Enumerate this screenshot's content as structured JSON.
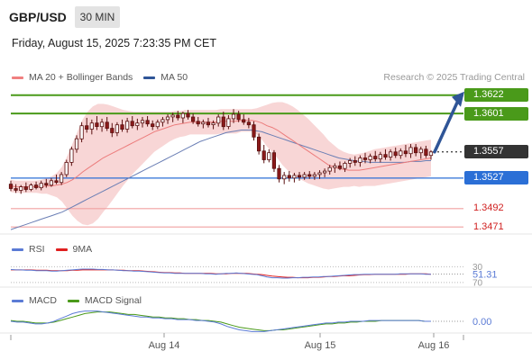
{
  "header": {
    "symbol": "GBP/USD",
    "timeframe": "30 MIN",
    "datetime": "Friday, August 15, 2025 7:23:35 PM CET"
  },
  "legends": {
    "price": [
      {
        "label": "MA 20 + Bollinger Bands",
        "color": "#f08080"
      },
      {
        "label": "MA 50",
        "color": "#2f5597"
      }
    ],
    "rsi": [
      {
        "label": "RSI",
        "color": "#5b7bd5"
      },
      {
        "label": "9MA",
        "color": "#e02020"
      }
    ],
    "macd": [
      {
        "label": "MACD",
        "color": "#5b7bd5"
      },
      {
        "label": "MACD Signal",
        "color": "#4a9a1a"
      }
    ]
  },
  "credit": "Research © 2025 Trading Central",
  "levels": [
    {
      "value": 1.3622,
      "label": "1.3622",
      "style": "green-box"
    },
    {
      "value": 1.3601,
      "label": "1.3601",
      "style": "green-box"
    },
    {
      "value": 1.3557,
      "label": "1.3557",
      "style": "dark-box"
    },
    {
      "value": 1.3527,
      "label": "1.3527",
      "style": "blue-box"
    },
    {
      "value": 1.3492,
      "label": "1.3492",
      "style": "red-text"
    },
    {
      "value": 1.3471,
      "label": "1.3471",
      "style": "red-text"
    }
  ],
  "colors": {
    "green": "#4a9a1a",
    "dark": "#333333",
    "blue": "#2b6fd6",
    "red": "#d02020",
    "band_fill": "#f6c8c8",
    "candle_up": "#ffffff",
    "candle_down": "#8b1a1a",
    "arrow": "#2f5597"
  },
  "chart_data": {
    "type": "candlestick",
    "ylim": [
      1.3465,
      1.3632
    ],
    "x_ticks": [
      "Aug 14",
      "Aug 15",
      "Aug 16"
    ],
    "last_price": 1.3557,
    "forecast_target": 1.3622,
    "candles": [
      [
        1.352,
        1.3524,
        1.3512,
        1.3515
      ],
      [
        1.3515,
        1.352,
        1.351,
        1.3513
      ],
      [
        1.3513,
        1.3519,
        1.3509,
        1.3517
      ],
      [
        1.3517,
        1.3522,
        1.3511,
        1.3514
      ],
      [
        1.3514,
        1.3521,
        1.3512,
        1.3519
      ],
      [
        1.3519,
        1.3523,
        1.3514,
        1.3516
      ],
      [
        1.3516,
        1.3524,
        1.3513,
        1.3521
      ],
      [
        1.3521,
        1.3526,
        1.3516,
        1.3519
      ],
      [
        1.3519,
        1.3527,
        1.3517,
        1.3524
      ],
      [
        1.3524,
        1.3531,
        1.352,
        1.3522
      ],
      [
        1.3522,
        1.3534,
        1.3519,
        1.3531
      ],
      [
        1.3531,
        1.3548,
        1.3528,
        1.3545
      ],
      [
        1.3545,
        1.3563,
        1.3541,
        1.356
      ],
      [
        1.356,
        1.3576,
        1.3556,
        1.3572
      ],
      [
        1.3572,
        1.3591,
        1.3568,
        1.3587
      ],
      [
        1.3587,
        1.3596,
        1.3579,
        1.3583
      ],
      [
        1.3583,
        1.3594,
        1.3577,
        1.359
      ],
      [
        1.359,
        1.3598,
        1.3582,
        1.3586
      ],
      [
        1.3586,
        1.3595,
        1.358,
        1.3591
      ],
      [
        1.3591,
        1.3597,
        1.3581,
        1.3584
      ],
      [
        1.3584,
        1.359,
        1.3574,
        1.3579
      ],
      [
        1.3579,
        1.3591,
        1.3575,
        1.3588
      ],
      [
        1.3588,
        1.3594,
        1.358,
        1.3583
      ],
      [
        1.3583,
        1.3596,
        1.3579,
        1.3592
      ],
      [
        1.3592,
        1.3598,
        1.3584,
        1.3587
      ],
      [
        1.3587,
        1.3595,
        1.3582,
        1.359
      ],
      [
        1.359,
        1.3597,
        1.3585,
        1.3593
      ],
      [
        1.3593,
        1.3598,
        1.3586,
        1.3589
      ],
      [
        1.3589,
        1.3593,
        1.3582,
        1.3586
      ],
      [
        1.3586,
        1.3594,
        1.3583,
        1.3591
      ],
      [
        1.3591,
        1.3597,
        1.3586,
        1.3594
      ],
      [
        1.3594,
        1.36,
        1.3589,
        1.3597
      ],
      [
        1.3597,
        1.3602,
        1.3591,
        1.3599
      ],
      [
        1.3599,
        1.3604,
        1.3593,
        1.3596
      ],
      [
        1.3596,
        1.3603,
        1.359,
        1.3601
      ],
      [
        1.3601,
        1.3605,
        1.3594,
        1.3597
      ],
      [
        1.3597,
        1.3601,
        1.3589,
        1.3592
      ],
      [
        1.3592,
        1.3597,
        1.3586,
        1.3589
      ],
      [
        1.3589,
        1.3594,
        1.3584,
        1.3591
      ],
      [
        1.3591,
        1.3596,
        1.3585,
        1.3588
      ],
      [
        1.3588,
        1.3593,
        1.3583,
        1.359
      ],
      [
        1.359,
        1.36,
        1.3586,
        1.3597
      ],
      [
        1.3597,
        1.3603,
        1.3582,
        1.3586
      ],
      [
        1.3586,
        1.3599,
        1.3583,
        1.3595
      ],
      [
        1.3595,
        1.3606,
        1.359,
        1.36
      ],
      [
        1.36,
        1.3604,
        1.3591,
        1.3594
      ],
      [
        1.3594,
        1.36,
        1.3588,
        1.3591
      ],
      [
        1.3591,
        1.3596,
        1.3584,
        1.3588
      ],
      [
        1.3588,
        1.3592,
        1.357,
        1.3574
      ],
      [
        1.3574,
        1.3578,
        1.3554,
        1.3558
      ],
      [
        1.3558,
        1.3565,
        1.3544,
        1.3548
      ],
      [
        1.3548,
        1.356,
        1.3545,
        1.3556
      ],
      [
        1.3556,
        1.3559,
        1.3534,
        1.3538
      ],
      [
        1.3538,
        1.3542,
        1.3522,
        1.3526
      ],
      [
        1.3526,
        1.3534,
        1.352,
        1.353
      ],
      [
        1.353,
        1.3535,
        1.3523,
        1.3527
      ],
      [
        1.3527,
        1.3533,
        1.3522,
        1.353
      ],
      [
        1.353,
        1.3534,
        1.3524,
        1.3528
      ],
      [
        1.3528,
        1.3534,
        1.3525,
        1.3531
      ],
      [
        1.3531,
        1.3535,
        1.3526,
        1.3529
      ],
      [
        1.3529,
        1.3534,
        1.3525,
        1.3531
      ],
      [
        1.3531,
        1.3536,
        1.3526,
        1.3533
      ],
      [
        1.3533,
        1.3538,
        1.3528,
        1.3535
      ],
      [
        1.3535,
        1.3542,
        1.3531,
        1.3539
      ],
      [
        1.3539,
        1.3544,
        1.3533,
        1.3541
      ],
      [
        1.3541,
        1.3546,
        1.3536,
        1.3538
      ],
      [
        1.3538,
        1.3546,
        1.3534,
        1.3544
      ],
      [
        1.3544,
        1.355,
        1.3539,
        1.3547
      ],
      [
        1.3547,
        1.3552,
        1.3541,
        1.3545
      ],
      [
        1.3545,
        1.3553,
        1.354,
        1.355
      ],
      [
        1.355,
        1.3556,
        1.3544,
        1.3548
      ],
      [
        1.3548,
        1.3555,
        1.3544,
        1.3552
      ],
      [
        1.3552,
        1.3558,
        1.3546,
        1.3549
      ],
      [
        1.3549,
        1.3557,
        1.3545,
        1.3554
      ],
      [
        1.3554,
        1.356,
        1.3548,
        1.3551
      ],
      [
        1.3551,
        1.356,
        1.3547,
        1.3557
      ],
      [
        1.3557,
        1.3562,
        1.355,
        1.3553
      ],
      [
        1.3553,
        1.3561,
        1.3549,
        1.3558
      ],
      [
        1.3558,
        1.3565,
        1.3551,
        1.3555
      ],
      [
        1.3555,
        1.3566,
        1.355,
        1.3562
      ],
      [
        1.3562,
        1.3566,
        1.3552,
        1.3556
      ],
      [
        1.3556,
        1.3563,
        1.3549,
        1.356
      ],
      [
        1.356,
        1.3564,
        1.355,
        1.3553
      ],
      [
        1.3553,
        1.3559,
        1.3548,
        1.3557
      ]
    ],
    "ma20": [
      1.3518,
      1.3517,
      1.3517,
      1.3517,
      1.3517,
      1.3517,
      1.3517,
      1.3518,
      1.3518,
      1.3519,
      1.352,
      1.3522,
      1.3525,
      1.3529,
      1.3534,
      1.3538,
      1.3542,
      1.3546,
      1.355,
      1.3553,
      1.3556,
      1.3559,
      1.3562,
      1.3565,
      1.3568,
      1.3571,
      1.3574,
      1.3577,
      1.358,
      1.3582,
      1.3584,
      1.3586,
      1.3588,
      1.3589,
      1.359,
      1.3591,
      1.3591,
      1.3591,
      1.3591,
      1.3591,
      1.3591,
      1.3592,
      1.3592,
      1.3592,
      1.3592,
      1.3593,
      1.3593,
      1.3593,
      1.3592,
      1.359,
      1.3587,
      1.3585,
      1.3582,
      1.3578,
      1.3574,
      1.357,
      1.3566,
      1.3562,
      1.3558,
      1.3554,
      1.355,
      1.3546,
      1.3542,
      1.354,
      1.3538,
      1.3537,
      1.3536,
      1.3536,
      1.3536,
      1.3537,
      1.3538,
      1.3539,
      1.354,
      1.3541,
      1.3542,
      1.3543,
      1.3544,
      1.3545,
      1.3546,
      1.3547,
      1.3548,
      1.3549,
      1.355
    ],
    "bb_upper": [
      1.3525,
      1.3524,
      1.3524,
      1.3524,
      1.3524,
      1.3524,
      1.3525,
      1.3527,
      1.3529,
      1.3533,
      1.354,
      1.3552,
      1.3566,
      1.358,
      1.3594,
      1.3603,
      1.3609,
      1.3612,
      1.3612,
      1.3611,
      1.3609,
      1.3607,
      1.3605,
      1.3604,
      1.3603,
      1.3603,
      1.3603,
      1.3603,
      1.3603,
      1.3603,
      1.3603,
      1.3603,
      1.3604,
      1.3604,
      1.3605,
      1.3605,
      1.3605,
      1.3605,
      1.3605,
      1.3605,
      1.3605,
      1.3606,
      1.3606,
      1.3606,
      1.3606,
      1.3606,
      1.3606,
      1.3606,
      1.3607,
      1.3609,
      1.3611,
      1.3613,
      1.3614,
      1.3614,
      1.3612,
      1.3609,
      1.3605,
      1.36,
      1.3595,
      1.3589,
      1.3583,
      1.3577,
      1.357,
      1.3565,
      1.356,
      1.3557,
      1.3555,
      1.3554,
      1.3555,
      1.3556,
      1.3558,
      1.356,
      1.3561,
      1.3562,
      1.3563,
      1.3564,
      1.3565,
      1.3566,
      1.3567,
      1.3568,
      1.3569,
      1.357,
      1.3571
    ],
    "bb_lower": [
      1.3511,
      1.351,
      1.351,
      1.351,
      1.351,
      1.351,
      1.3509,
      1.3509,
      1.3507,
      1.3505,
      1.35,
      1.3492,
      1.3484,
      1.3478,
      1.3474,
      1.3473,
      1.3475,
      1.348,
      1.3488,
      1.3495,
      1.3503,
      1.3511,
      1.3519,
      1.3526,
      1.3533,
      1.3539,
      1.3545,
      1.3551,
      1.3557,
      1.3561,
      1.3565,
      1.3569,
      1.3572,
      1.3574,
      1.3575,
      1.3577,
      1.3577,
      1.3577,
      1.3577,
      1.3577,
      1.3577,
      1.3578,
      1.3578,
      1.3578,
      1.3578,
      1.358,
      1.358,
      1.358,
      1.3577,
      1.3571,
      1.3563,
      1.3557,
      1.355,
      1.3542,
      1.3536,
      1.3531,
      1.3527,
      1.3524,
      1.3521,
      1.3519,
      1.3517,
      1.3515,
      1.3514,
      1.3515,
      1.3516,
      1.3517,
      1.3517,
      1.3518,
      1.3517,
      1.3518,
      1.3518,
      1.3518,
      1.3519,
      1.352,
      1.3521,
      1.3522,
      1.3523,
      1.3524,
      1.3525,
      1.3526,
      1.3527,
      1.3528,
      1.3529
    ],
    "ma50": [
      1.3468,
      1.347,
      1.3472,
      1.3474,
      1.3476,
      1.3478,
      1.348,
      1.3482,
      1.3484,
      1.3486,
      1.3488,
      1.3491,
      1.3494,
      1.3497,
      1.35,
      1.3503,
      1.3506,
      1.3509,
      1.3512,
      1.3515,
      1.3518,
      1.3521,
      1.3524,
      1.3527,
      1.353,
      1.3533,
      1.3536,
      1.3539,
      1.3542,
      1.3545,
      1.3548,
      1.3551,
      1.3554,
      1.3557,
      1.356,
      1.3563,
      1.3566,
      1.3569,
      1.3571,
      1.3573,
      1.3575,
      1.3577,
      1.3579,
      1.358,
      1.3581,
      1.3582,
      1.3582,
      1.3582,
      1.3581,
      1.358,
      1.3578,
      1.3576,
      1.3574,
      1.3572,
      1.357,
      1.3568,
      1.3566,
      1.3564,
      1.3562,
      1.356,
      1.3558,
      1.3556,
      1.3554,
      1.3552,
      1.355,
      1.3549,
      1.3548,
      1.3547,
      1.3546,
      1.3546,
      1.3545,
      1.3545,
      1.3545,
      1.3545,
      1.3545,
      1.3545,
      1.3545,
      1.3545,
      1.3546,
      1.3546,
      1.3546,
      1.3547,
      1.3547
    ],
    "rsi": {
      "ylim": [
        25,
        80
      ],
      "levels": [
        30,
        70
      ],
      "level_labels": [
        "70",
        "30"
      ],
      "last_value": 51.31,
      "last_label": "51.31",
      "values": [
        63,
        62,
        62,
        61,
        61,
        60,
        60,
        60,
        59,
        59,
        60,
        61,
        62,
        63,
        64,
        64,
        64,
        63,
        63,
        62,
        62,
        61,
        60,
        60,
        59,
        59,
        58,
        57,
        56,
        55,
        54,
        54,
        53,
        53,
        53,
        53,
        53,
        53,
        52,
        52,
        51,
        52,
        53,
        53,
        54,
        53,
        52,
        51,
        50,
        47,
        44,
        42,
        42,
        41,
        41,
        42,
        42,
        43,
        43,
        44,
        44,
        45,
        45,
        46,
        47,
        48,
        49,
        50,
        50,
        51,
        51,
        51,
        51,
        51,
        51,
        51,
        52,
        52,
        52,
        52,
        52,
        51,
        51
      ],
      "ma9": [
        62,
        62,
        62,
        62,
        62,
        61,
        61,
        61,
        60,
        60,
        60,
        60,
        61,
        61,
        62,
        62,
        62,
        62,
        62,
        62,
        62,
        61,
        61,
        60,
        60,
        60,
        59,
        58,
        57,
        56,
        55,
        55,
        54,
        54,
        53,
        53,
        53,
        53,
        53,
        53,
        52,
        52,
        52,
        53,
        53,
        53,
        53,
        52,
        51,
        50,
        48,
        46,
        45,
        44,
        43,
        43,
        42,
        42,
        42,
        43,
        43,
        44,
        45,
        45,
        46,
        47,
        47,
        48,
        49,
        50,
        50,
        51,
        51,
        51,
        51,
        51,
        51,
        51,
        52,
        52,
        52,
        52,
        51
      ]
    },
    "macd": {
      "last_value": 0.0,
      "last_label": "0.00",
      "macd": [
        0.0,
        -0.0001,
        -0.0001,
        -0.0002,
        -0.0003,
        -0.0003,
        -0.0002,
        0.0,
        0.0003,
        0.0006,
        0.0009,
        0.0011,
        0.0012,
        0.0012,
        0.0012,
        0.0011,
        0.001,
        0.0009,
        0.0008,
        0.0007,
        0.0006,
        0.0005,
        0.0005,
        0.0004,
        0.0004,
        0.0003,
        0.0003,
        0.0002,
        0.0002,
        0.0002,
        0.0001,
        0.0001,
        0.0,
        -0.0001,
        -0.0003,
        -0.0006,
        -0.0008,
        -0.001,
        -0.0011,
        -0.0012,
        -0.0012,
        -0.0012,
        -0.0011,
        -0.001,
        -0.0009,
        -0.0008,
        -0.0007,
        -0.0006,
        -0.0005,
        -0.0004,
        -0.0003,
        -0.0002,
        -0.0002,
        -0.0001,
        -0.0001,
        0.0,
        0.0,
        0.0,
        0.0001,
        0.0001,
        0.0001,
        0.0001,
        0.0001,
        0.0001,
        0.0001,
        0.0001,
        0.0001,
        0.0,
        0.0
      ],
      "signal": [
        0.0001,
        0.0,
        0.0,
        -0.0001,
        -0.0002,
        -0.0002,
        -0.0002,
        -0.0001,
        0.0001,
        0.0003,
        0.0005,
        0.0007,
        0.0009,
        0.001,
        0.0011,
        0.0011,
        0.0011,
        0.001,
        0.0009,
        0.0008,
        0.0008,
        0.0007,
        0.0006,
        0.0005,
        0.0005,
        0.0004,
        0.0004,
        0.0003,
        0.0003,
        0.0002,
        0.0002,
        0.0001,
        0.0001,
        0.0,
        -0.0001,
        -0.0003,
        -0.0005,
        -0.0007,
        -0.0008,
        -0.0009,
        -0.001,
        -0.0011,
        -0.0011,
        -0.001,
        -0.001,
        -0.0009,
        -0.0008,
        -0.0007,
        -0.0006,
        -0.0005,
        -0.0004,
        -0.0003,
        -0.0003,
        -0.0002,
        -0.0002,
        -0.0001,
        -0.0001,
        0.0,
        0.0,
        0.0,
        0.0001,
        0.0001,
        0.0001,
        0.0001,
        0.0001,
        0.0001,
        0.0001,
        0.0,
        0.0
      ]
    }
  }
}
